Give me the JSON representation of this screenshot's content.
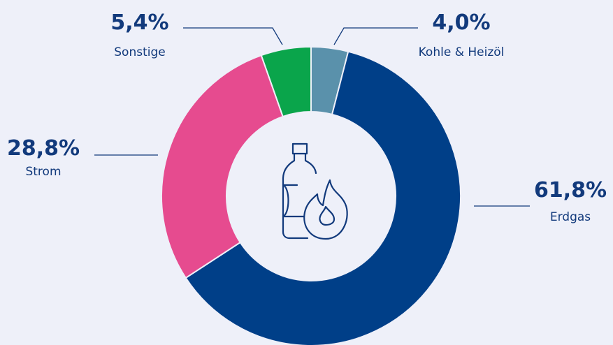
{
  "chart_data": {
    "type": "donut",
    "categories": [
      "Kohle & Heizöl",
      "Erdgas",
      "Strom",
      "Sonstige"
    ],
    "values": [
      4.0,
      61.8,
      28.8,
      5.4
    ],
    "value_labels": [
      "4,0%",
      "61,8%",
      "28,8%",
      "5,4%"
    ],
    "colors": [
      "#5a91ab",
      "#003f88",
      "#e64b8f",
      "#0aa54b"
    ]
  }
}
